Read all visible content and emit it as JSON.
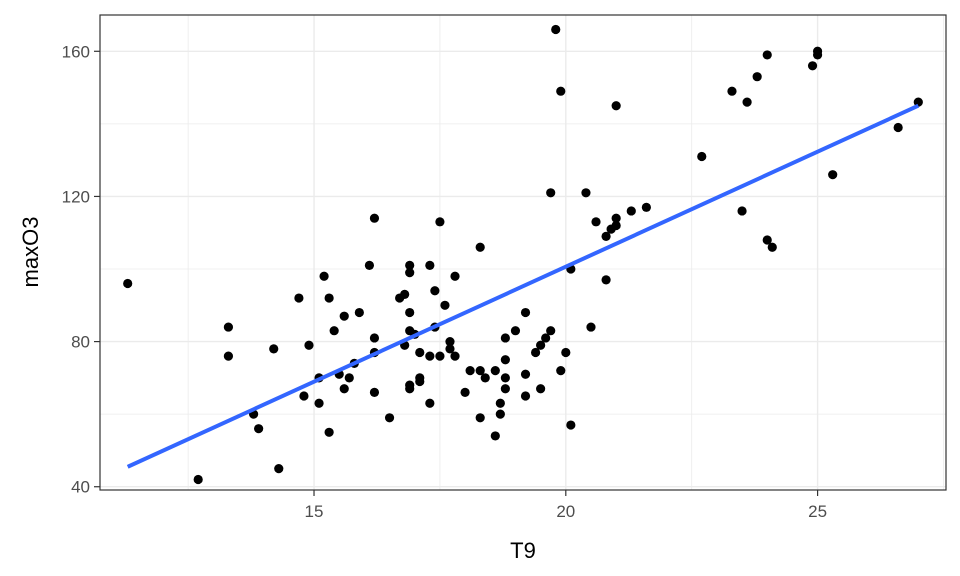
{
  "chart_data": {
    "type": "scatter",
    "xlabel": "T9",
    "ylabel": "maxO3",
    "xlim": [
      10.75,
      27.55
    ],
    "ylim": [
      39.1,
      170.0
    ],
    "x_ticks": [
      15,
      20,
      25
    ],
    "y_ticks": [
      40,
      80,
      120,
      160
    ],
    "x_minor_ticks": [
      12.5,
      17.5,
      22.5,
      27.5
    ],
    "y_minor_ticks": [
      60,
      100,
      140
    ],
    "grid": true,
    "colors": {
      "points": "#000000",
      "fit_line": "#3366FF",
      "grid": "#ebebeb",
      "panel_border": "#333333"
    },
    "fit_line": {
      "x": [
        11.3,
        27.0
      ],
      "y": [
        45.5,
        145.0
      ]
    },
    "points": [
      {
        "x": 11.3,
        "y": 96
      },
      {
        "x": 12.7,
        "y": 42
      },
      {
        "x": 13.3,
        "y": 84
      },
      {
        "x": 13.3,
        "y": 76
      },
      {
        "x": 13.8,
        "y": 60
      },
      {
        "x": 13.9,
        "y": 56
      },
      {
        "x": 14.2,
        "y": 78
      },
      {
        "x": 14.3,
        "y": 45
      },
      {
        "x": 14.7,
        "y": 92
      },
      {
        "x": 14.8,
        "y": 65
      },
      {
        "x": 14.9,
        "y": 79
      },
      {
        "x": 15.1,
        "y": 63
      },
      {
        "x": 15.1,
        "y": 70
      },
      {
        "x": 15.2,
        "y": 98
      },
      {
        "x": 15.3,
        "y": 92
      },
      {
        "x": 15.3,
        "y": 55
      },
      {
        "x": 15.4,
        "y": 83
      },
      {
        "x": 15.5,
        "y": 71
      },
      {
        "x": 15.6,
        "y": 67
      },
      {
        "x": 15.6,
        "y": 87
      },
      {
        "x": 15.7,
        "y": 70
      },
      {
        "x": 15.8,
        "y": 74
      },
      {
        "x": 15.9,
        "y": 88
      },
      {
        "x": 16.1,
        "y": 101
      },
      {
        "x": 16.2,
        "y": 114
      },
      {
        "x": 16.2,
        "y": 81
      },
      {
        "x": 16.2,
        "y": 77
      },
      {
        "x": 16.2,
        "y": 66
      },
      {
        "x": 16.5,
        "y": 59
      },
      {
        "x": 16.7,
        "y": 92
      },
      {
        "x": 16.8,
        "y": 93
      },
      {
        "x": 16.8,
        "y": 79
      },
      {
        "x": 16.9,
        "y": 101
      },
      {
        "x": 16.9,
        "y": 99
      },
      {
        "x": 16.9,
        "y": 88
      },
      {
        "x": 16.9,
        "y": 83
      },
      {
        "x": 16.9,
        "y": 68
      },
      {
        "x": 16.9,
        "y": 67
      },
      {
        "x": 17.0,
        "y": 82
      },
      {
        "x": 17.1,
        "y": 77
      },
      {
        "x": 17.1,
        "y": 70
      },
      {
        "x": 17.1,
        "y": 69
      },
      {
        "x": 17.3,
        "y": 101
      },
      {
        "x": 17.3,
        "y": 76
      },
      {
        "x": 17.3,
        "y": 63
      },
      {
        "x": 17.4,
        "y": 94
      },
      {
        "x": 17.4,
        "y": 84
      },
      {
        "x": 17.5,
        "y": 113
      },
      {
        "x": 17.5,
        "y": 76
      },
      {
        "x": 17.6,
        "y": 90
      },
      {
        "x": 17.7,
        "y": 80
      },
      {
        "x": 17.7,
        "y": 78
      },
      {
        "x": 17.8,
        "y": 98
      },
      {
        "x": 17.8,
        "y": 76
      },
      {
        "x": 18.0,
        "y": 66
      },
      {
        "x": 18.1,
        "y": 72
      },
      {
        "x": 18.3,
        "y": 106
      },
      {
        "x": 18.3,
        "y": 72
      },
      {
        "x": 18.3,
        "y": 59
      },
      {
        "x": 18.4,
        "y": 70
      },
      {
        "x": 18.6,
        "y": 72
      },
      {
        "x": 18.6,
        "y": 54
      },
      {
        "x": 18.7,
        "y": 63
      },
      {
        "x": 18.7,
        "y": 60
      },
      {
        "x": 18.8,
        "y": 81
      },
      {
        "x": 18.8,
        "y": 75
      },
      {
        "x": 18.8,
        "y": 70
      },
      {
        "x": 18.8,
        "y": 67
      },
      {
        "x": 19.0,
        "y": 83
      },
      {
        "x": 19.2,
        "y": 88
      },
      {
        "x": 19.2,
        "y": 71
      },
      {
        "x": 19.2,
        "y": 65
      },
      {
        "x": 19.4,
        "y": 77
      },
      {
        "x": 19.5,
        "y": 79
      },
      {
        "x": 19.5,
        "y": 67
      },
      {
        "x": 19.6,
        "y": 81
      },
      {
        "x": 19.7,
        "y": 83
      },
      {
        "x": 19.7,
        "y": 121
      },
      {
        "x": 19.8,
        "y": 166
      },
      {
        "x": 19.9,
        "y": 149
      },
      {
        "x": 19.9,
        "y": 72
      },
      {
        "x": 20.0,
        "y": 77
      },
      {
        "x": 20.1,
        "y": 100
      },
      {
        "x": 20.1,
        "y": 57
      },
      {
        "x": 20.4,
        "y": 121
      },
      {
        "x": 20.5,
        "y": 84
      },
      {
        "x": 20.6,
        "y": 113
      },
      {
        "x": 20.8,
        "y": 109
      },
      {
        "x": 20.8,
        "y": 97
      },
      {
        "x": 20.9,
        "y": 111
      },
      {
        "x": 21.0,
        "y": 114
      },
      {
        "x": 21.0,
        "y": 112
      },
      {
        "x": 21.0,
        "y": 145
      },
      {
        "x": 21.3,
        "y": 116
      },
      {
        "x": 21.6,
        "y": 117
      },
      {
        "x": 22.7,
        "y": 131
      },
      {
        "x": 23.3,
        "y": 149
      },
      {
        "x": 23.5,
        "y": 116
      },
      {
        "x": 23.6,
        "y": 146
      },
      {
        "x": 23.8,
        "y": 153
      },
      {
        "x": 24.0,
        "y": 159
      },
      {
        "x": 24.0,
        "y": 108
      },
      {
        "x": 24.1,
        "y": 106
      },
      {
        "x": 24.9,
        "y": 156
      },
      {
        "x": 25.0,
        "y": 160
      },
      {
        "x": 25.0,
        "y": 159
      },
      {
        "x": 25.3,
        "y": 126
      },
      {
        "x": 26.6,
        "y": 139
      },
      {
        "x": 27.0,
        "y": 146
      }
    ]
  }
}
